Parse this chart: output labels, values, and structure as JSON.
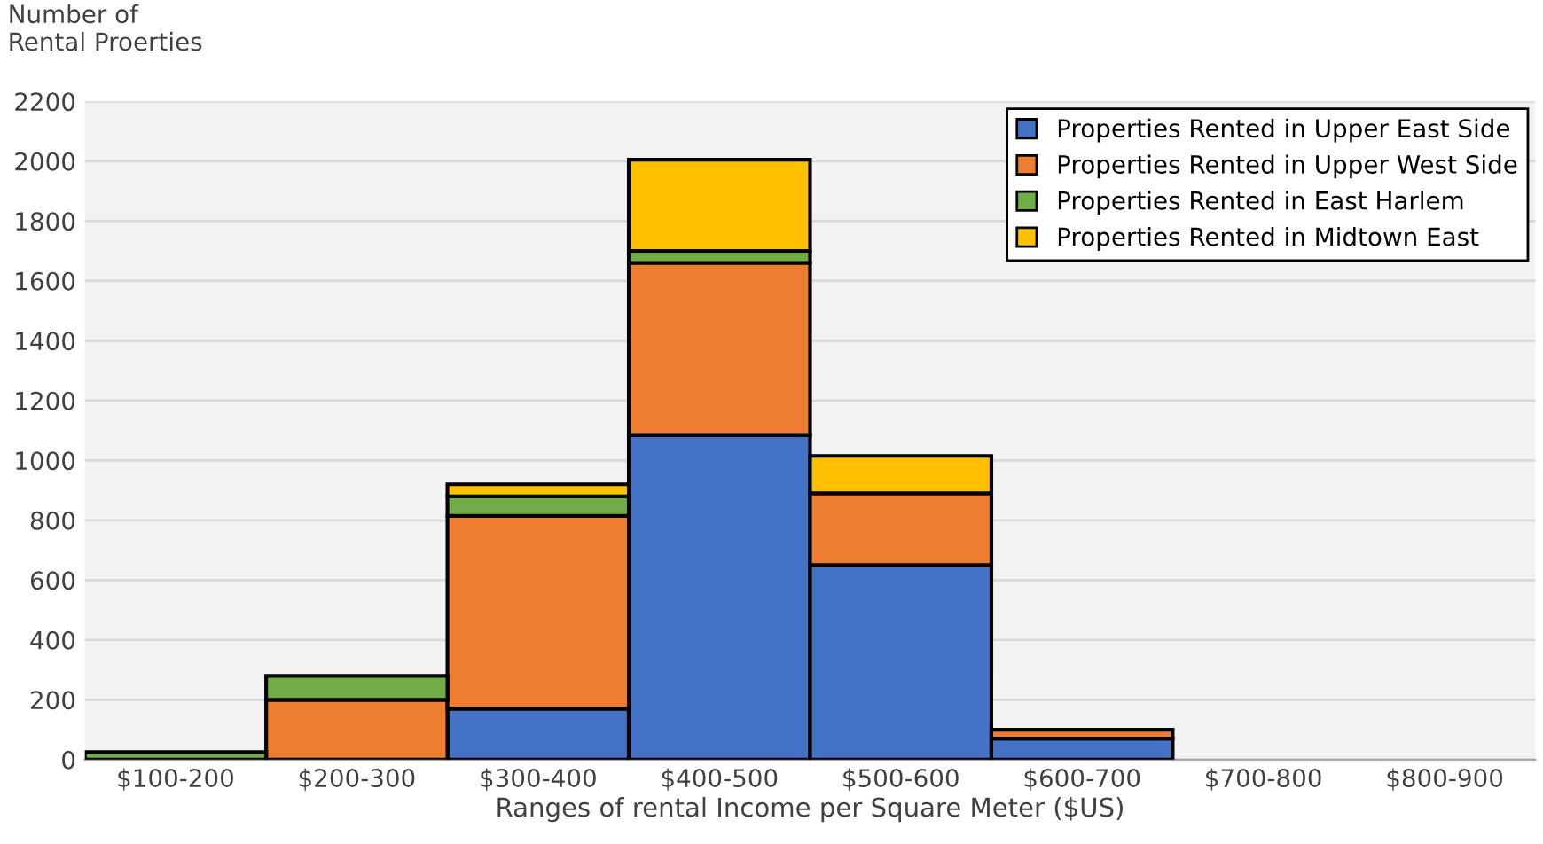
{
  "chart_data": {
    "type": "bar",
    "stacked": true,
    "ylabel": "Number of\nRental Proerties",
    "xlabel": "Ranges of rental Income per Square Meter ($US)",
    "categories": [
      "$100-200",
      "$200-300",
      "$300-400",
      "$400-500",
      "$500-600",
      "$600-700",
      "$700-800",
      "$800-900"
    ],
    "series": [
      {
        "name": "Properties Rented in Upper East Side",
        "color": "#4472c4",
        "values": [
          null,
          null,
          170,
          1085,
          650,
          70,
          null,
          null
        ]
      },
      {
        "name": "Properties Rented in Upper West Side",
        "color": "#ed7d31",
        "values": [
          null,
          200,
          645,
          575,
          240,
          30,
          null,
          null
        ]
      },
      {
        "name": "Properties Rented in East Harlem",
        "color": "#70ad47",
        "values": [
          25,
          80,
          65,
          40,
          null,
          null,
          null,
          null
        ]
      },
      {
        "name": "Properties Rented in Midtown East",
        "color": "#ffc000",
        "values": [
          null,
          null,
          40,
          305,
          125,
          null,
          null,
          null
        ]
      }
    ],
    "ylim": [
      0,
      2200
    ],
    "yticks": [
      0,
      200,
      400,
      600,
      800,
      1000,
      1200,
      1400,
      1600,
      1800,
      2000,
      2200
    ],
    "grid": "y",
    "legend": "top right"
  }
}
